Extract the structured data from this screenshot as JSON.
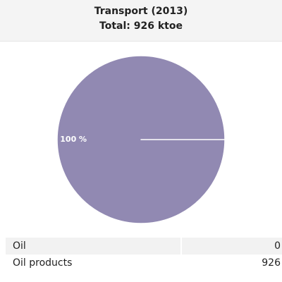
{
  "chart_data": {
    "type": "pie",
    "title": "Transport (2013)",
    "subtitle": "Total: 926 ktoe",
    "categories": [
      "Oil",
      "Oil products"
    ],
    "values": [
      0,
      100
    ],
    "value_labels": [
      null,
      "100 %"
    ],
    "colors": [
      "#7cb5ec",
      "#9189b2"
    ]
  },
  "table": {
    "rows": [
      [
        "Oil",
        "0"
      ],
      [
        "Oil products",
        "926"
      ]
    ]
  }
}
